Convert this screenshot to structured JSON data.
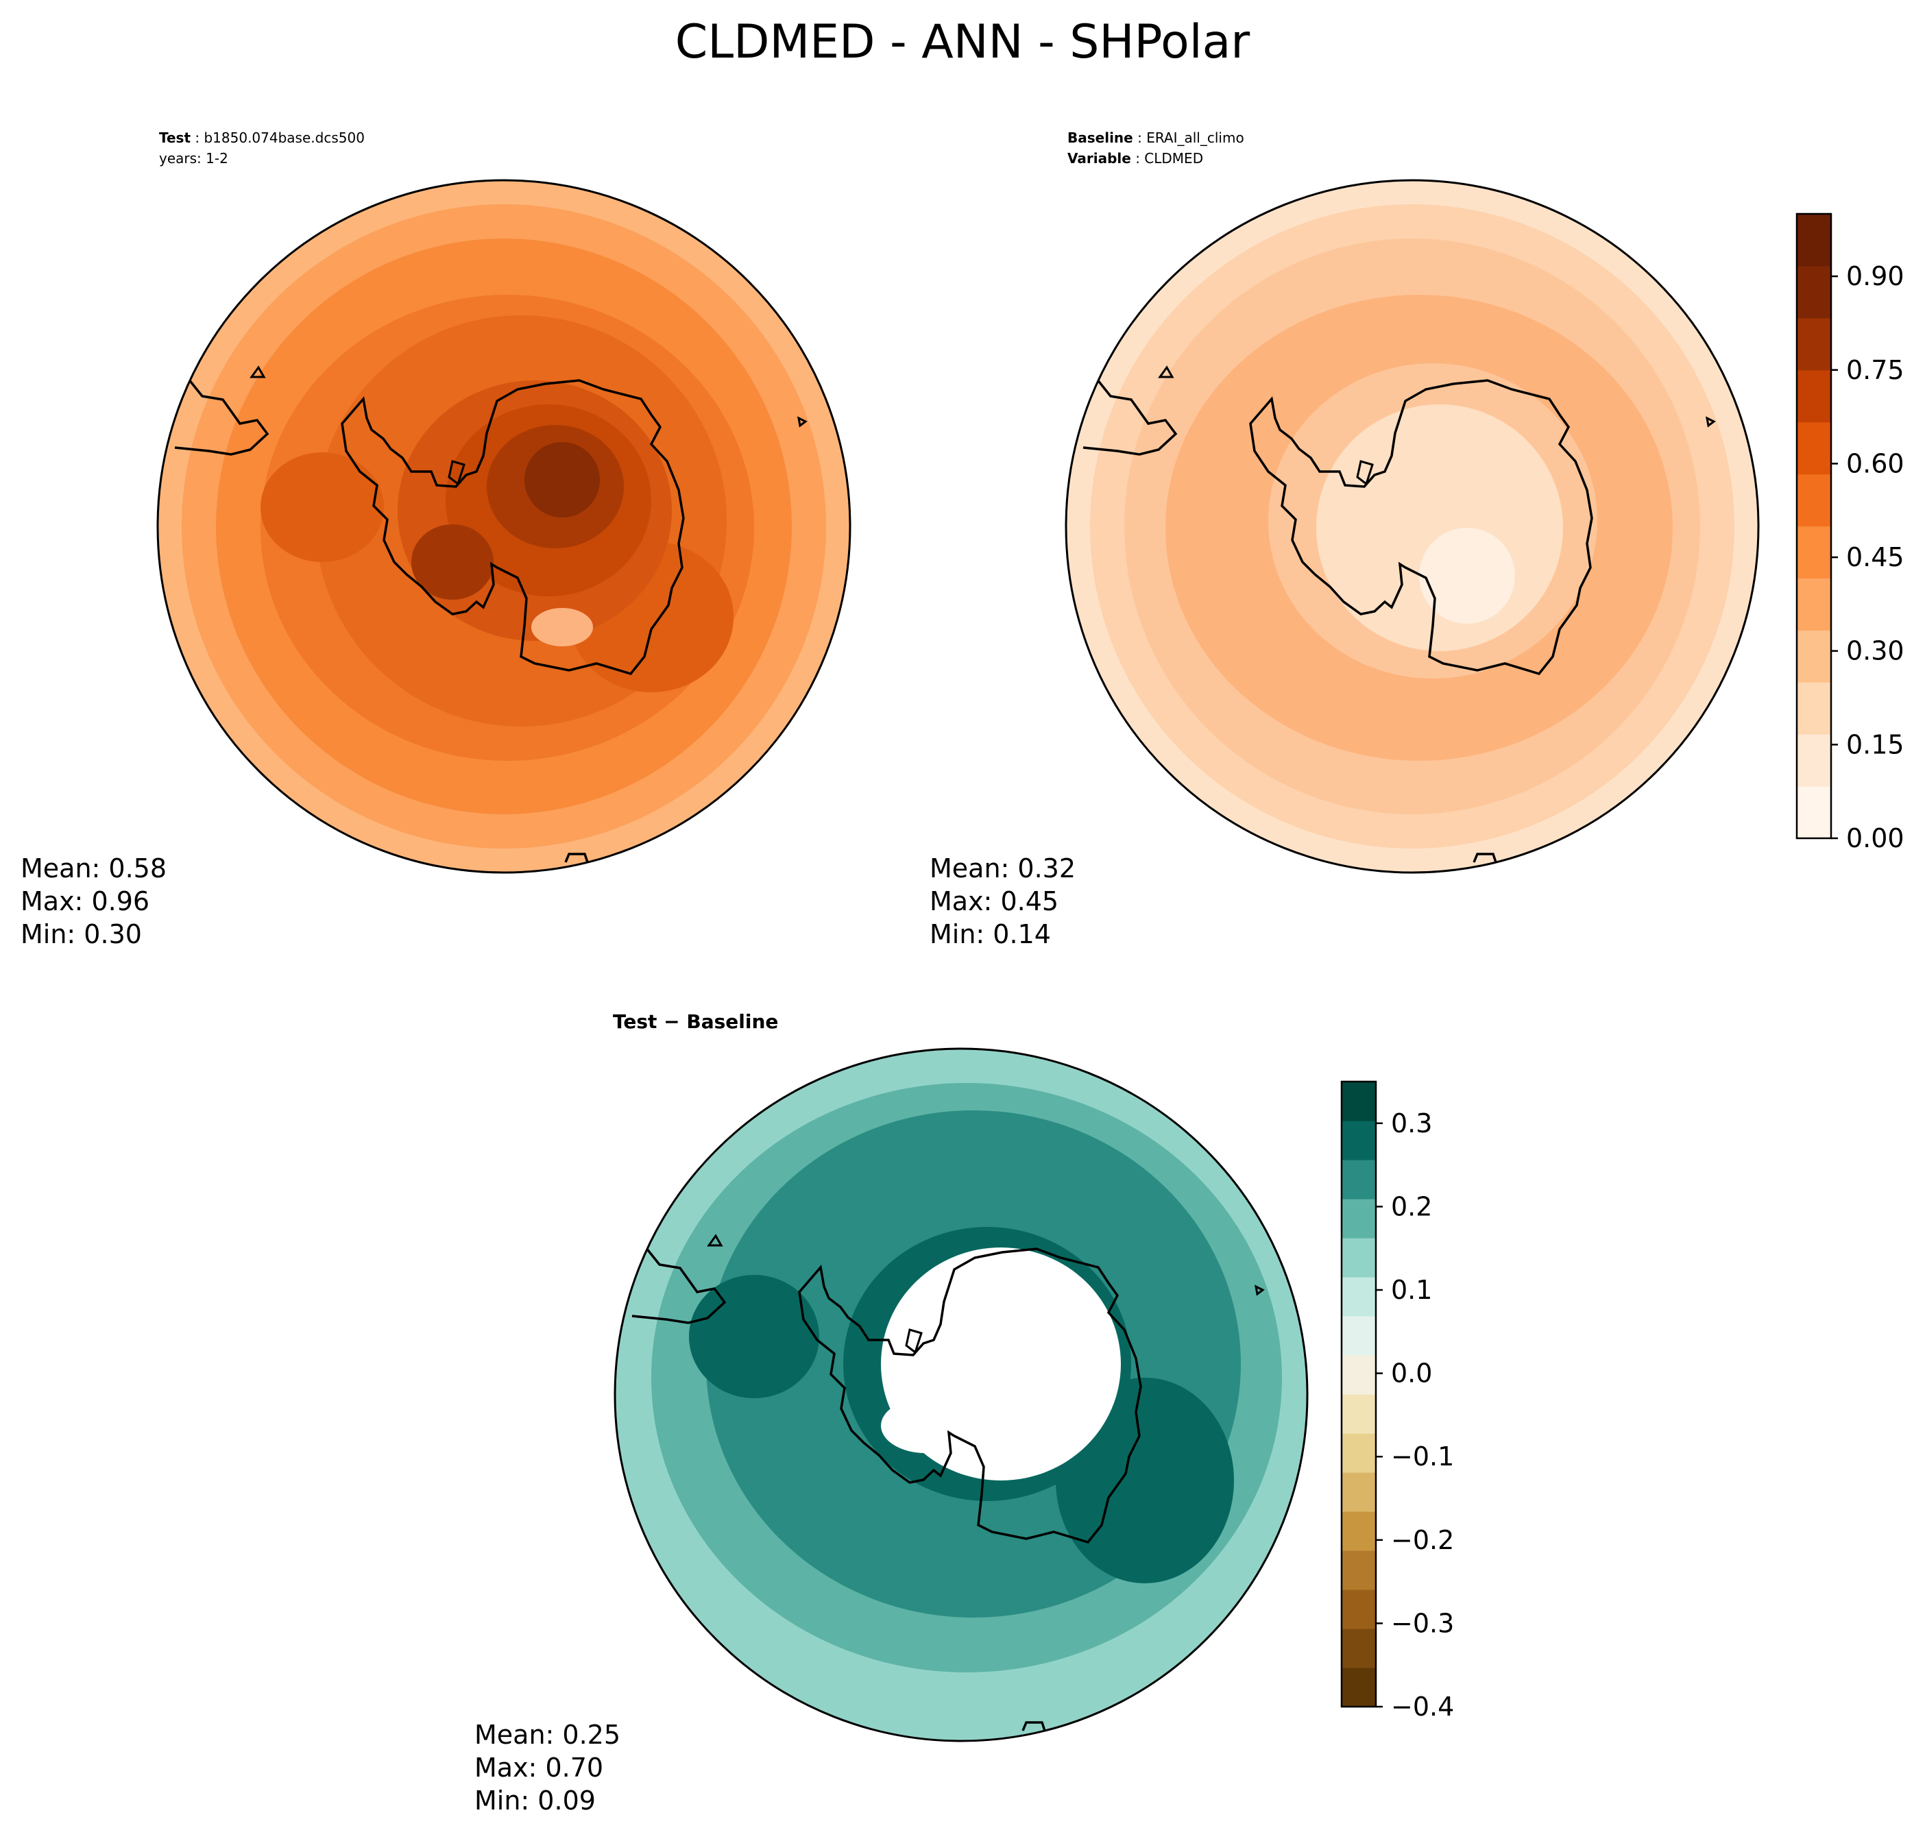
{
  "title": "CLDMED - ANN - SHPolar",
  "test_panel": {
    "label_key": "Test",
    "label_value": "b1850.074base.dcs500",
    "years": "years: 1-2",
    "mean": "Mean:  0.58",
    "max": "Max:  0.96",
    "min": "Min:  0.30"
  },
  "baseline_panel": {
    "label_key": "Baseline",
    "label_value": "ERAI_all_climo",
    "var_key": "Variable",
    "var_value": "CLDMED",
    "mean": "Mean:  0.32",
    "max": "Max:  0.45",
    "min": "Min:  0.14"
  },
  "diff_panel": {
    "label": "Test − Baseline",
    "mean": "Mean:  0.25",
    "max": "Max:  0.70",
    "min": "Min:  0.09"
  },
  "chart_data": [
    {
      "type": "heatmap",
      "name": "test",
      "projection": "south-polar-stereographic",
      "field_mean": 0.58,
      "field_max": 0.96,
      "field_min": 0.3,
      "colormap": "Oranges"
    },
    {
      "type": "heatmap",
      "name": "baseline",
      "projection": "south-polar-stereographic",
      "field_mean": 0.32,
      "field_max": 0.45,
      "field_min": 0.14,
      "colormap": "Oranges",
      "colorbar": {
        "range": [
          0.0,
          1.0
        ],
        "ticks": [
          0.0,
          0.15,
          0.3,
          0.45,
          0.6,
          0.75,
          0.9
        ],
        "tick_labels": [
          "0.00",
          "0.15",
          "0.30",
          "0.45",
          "0.60",
          "0.75",
          "0.90"
        ],
        "colors": [
          "#fff5eb",
          "#fee8d3",
          "#fdd8b3",
          "#fdc28c",
          "#fda762",
          "#fb8d3d",
          "#f2701d",
          "#e25609",
          "#c44103",
          "#9f3303",
          "#7f2704",
          "#6b2003"
        ]
      }
    },
    {
      "type": "heatmap",
      "name": "difference",
      "projection": "south-polar-stereographic",
      "field_mean": 0.25,
      "field_max": 0.7,
      "field_min": 0.09,
      "colormap": "BrBG",
      "colorbar": {
        "range": [
          -0.4,
          0.35
        ],
        "ticks": [
          -0.4,
          -0.3,
          -0.2,
          -0.1,
          0.0,
          0.1,
          0.2,
          0.3
        ],
        "tick_labels": [
          "−0.4",
          "−0.3",
          "−0.2",
          "−0.1",
          "0.0",
          "0.1",
          "0.2",
          "0.3"
        ],
        "colors": [
          "#5e3807",
          "#7b4a0f",
          "#9a6019",
          "#b27a2c",
          "#c8963f",
          "#dbb567",
          "#e8d08e",
          "#f2e3b7",
          "#f5efdf",
          "#e4f2ee",
          "#c4e9e1",
          "#92d3c8",
          "#5db3a6",
          "#2a8c82",
          "#07675e",
          "#00493f"
        ]
      }
    }
  ]
}
